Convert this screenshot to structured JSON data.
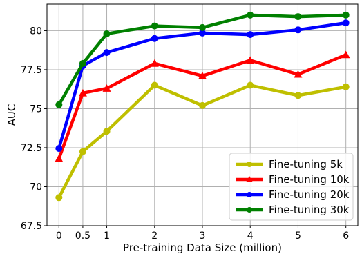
{
  "chart_data": {
    "type": "line",
    "title": "",
    "xlabel": "Pre-training Data Size (million)",
    "ylabel": "AUC",
    "x": [
      0,
      0.5,
      1,
      2,
      3,
      4,
      5,
      6
    ],
    "x_tick_labels": [
      "0",
      "0.5",
      "1",
      "2",
      "3",
      "4",
      "5",
      "6"
    ],
    "xlim": [
      -0.25,
      6.25
    ],
    "y_ticks": [
      67.5,
      70,
      72.5,
      75,
      77.5,
      80
    ],
    "y_tick_labels": [
      "67.5",
      "70",
      "72.5",
      "75",
      "77.5",
      "80"
    ],
    "ylim": [
      67.5,
      81.7
    ],
    "grid": true,
    "legend_position": "lower-right",
    "series": [
      {
        "name": "Fine-tuning 5k",
        "color": "#bfbf00",
        "marker": "circle",
        "values": [
          69.3,
          72.25,
          73.55,
          76.5,
          75.2,
          76.5,
          75.85,
          76.4
        ]
      },
      {
        "name": "Fine-tuning 10k",
        "color": "#ff0000",
        "marker": "triangle",
        "values": [
          71.8,
          76.0,
          76.3,
          77.9,
          77.1,
          78.1,
          77.2,
          78.45
        ]
      },
      {
        "name": "Fine-tuning 20k",
        "color": "#0000ff",
        "marker": "circle",
        "values": [
          72.45,
          77.75,
          78.6,
          79.5,
          79.85,
          79.75,
          80.05,
          80.5
        ]
      },
      {
        "name": "Fine-tuning 30k",
        "color": "#008000",
        "marker": "circle",
        "values": [
          75.25,
          77.9,
          79.8,
          80.3,
          80.2,
          81.0,
          80.9,
          81.0
        ]
      }
    ]
  }
}
